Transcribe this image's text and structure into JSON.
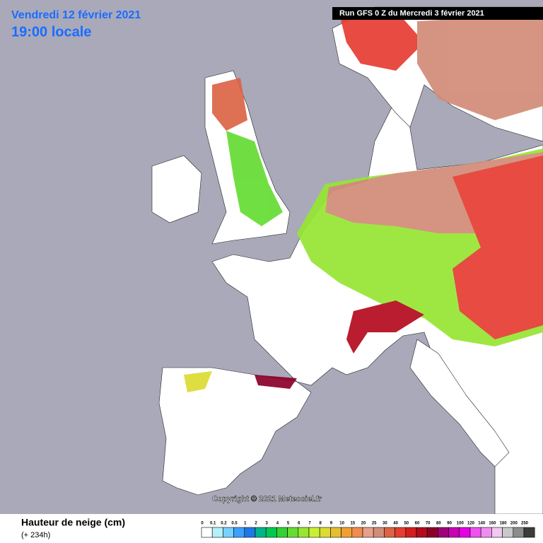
{
  "header": {
    "date": "Vendredi 12 février 2021",
    "time": "19:00 locale",
    "run": "Run GFS 0 Z du Mercredi 3 février 2021"
  },
  "copyright": "Copyright © 2021 Meteociel.fr",
  "legend": {
    "title": "Hauteur de neige (cm)",
    "lead": "(+ 234h)",
    "items": [
      {
        "label": "0",
        "color": "#ffffff"
      },
      {
        "label": "0.1",
        "color": "#b4f0fa"
      },
      {
        "label": "0.2",
        "color": "#78d2ff"
      },
      {
        "label": "0.5",
        "color": "#3ca0ff"
      },
      {
        "label": "1",
        "color": "#1e78e6"
      },
      {
        "label": "2",
        "color": "#00b48c"
      },
      {
        "label": "3",
        "color": "#00c850"
      },
      {
        "label": "4",
        "color": "#32d232"
      },
      {
        "label": "5",
        "color": "#64dc32"
      },
      {
        "label": "6",
        "color": "#96e632"
      },
      {
        "label": "7",
        "color": "#c8f032"
      },
      {
        "label": "8",
        "color": "#dcdc32"
      },
      {
        "label": "9",
        "color": "#e6be32"
      },
      {
        "label": "10",
        "color": "#f0a032"
      },
      {
        "label": "15",
        "color": "#f08c50"
      },
      {
        "label": "20",
        "color": "#e6a08c"
      },
      {
        "label": "25",
        "color": "#d28c78"
      },
      {
        "label": "30",
        "color": "#dc6446"
      },
      {
        "label": "40",
        "color": "#e63c32"
      },
      {
        "label": "50",
        "color": "#d21e1e"
      },
      {
        "label": "60",
        "color": "#b40a1e"
      },
      {
        "label": "70",
        "color": "#8c0028"
      },
      {
        "label": "80",
        "color": "#a00078"
      },
      {
        "label": "90",
        "color": "#c800b4"
      },
      {
        "label": "100",
        "color": "#e600e6"
      },
      {
        "label": "120",
        "color": "#f050f0"
      },
      {
        "label": "140",
        "color": "#f08cf0"
      },
      {
        "label": "160",
        "color": "#f0c8f0"
      },
      {
        "label": "180",
        "color": "#c8c8c8"
      },
      {
        "label": "200",
        "color": "#8c8c8c"
      },
      {
        "label": "250",
        "color": "#3c3c3c"
      }
    ]
  }
}
